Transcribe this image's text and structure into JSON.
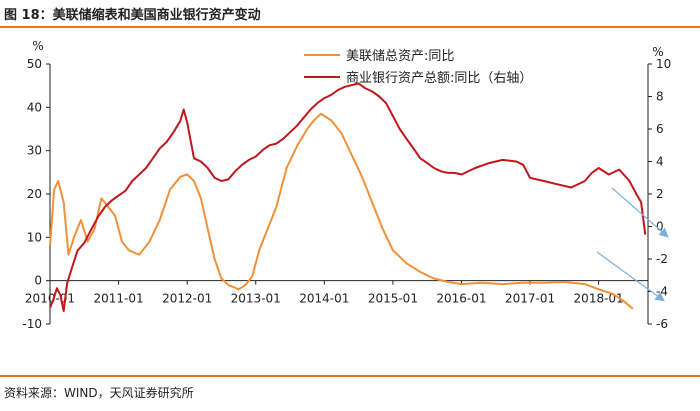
{
  "header": {
    "title": "图 18：美联储缩表和美国商业银行资产变动"
  },
  "footer": {
    "source": "资料来源：WIND，天风证券研究所"
  },
  "colors": {
    "accent": "#e8741e",
    "fed": "#f0913a",
    "banks": "#c0161c",
    "arrow": "#7fb0d8"
  },
  "chart_data": {
    "type": "line",
    "x_tick_labels": [
      "2010-01",
      "2011-01",
      "2012-01",
      "2013-01",
      "2014-01",
      "2015-01",
      "2016-01",
      "2017-01",
      "2018-01"
    ],
    "y_left": {
      "unit": "%",
      "ticks": [
        "50",
        "40",
        "30",
        "20",
        "10",
        "0",
        "-10"
      ],
      "range": [
        -10,
        50
      ]
    },
    "y_right": {
      "unit": "%",
      "ticks": [
        "10",
        "8",
        "6",
        "4",
        "2",
        "0",
        "-2",
        "-4",
        "-6"
      ],
      "range": [
        -6,
        10
      ]
    },
    "grid": false,
    "legend_position": "top-center",
    "series": [
      {
        "name": "美联储总资产:同比",
        "axis": "left",
        "color": "#f0913a",
        "points": [
          [
            2010.0,
            8
          ],
          [
            2010.06,
            21
          ],
          [
            2010.12,
            23
          ],
          [
            2010.2,
            18
          ],
          [
            2010.27,
            6
          ],
          [
            2010.35,
            10
          ],
          [
            2010.45,
            14
          ],
          [
            2010.55,
            9
          ],
          [
            2010.65,
            12
          ],
          [
            2010.75,
            19
          ],
          [
            2010.85,
            17
          ],
          [
            2010.95,
            15
          ],
          [
            2011.05,
            9
          ],
          [
            2011.15,
            7
          ],
          [
            2011.3,
            6
          ],
          [
            2011.45,
            9
          ],
          [
            2011.6,
            14
          ],
          [
            2011.75,
            21
          ],
          [
            2011.9,
            24
          ],
          [
            2012.0,
            24.5
          ],
          [
            2012.1,
            23
          ],
          [
            2012.2,
            19
          ],
          [
            2012.3,
            12
          ],
          [
            2012.4,
            5
          ],
          [
            2012.5,
            0.5
          ],
          [
            2012.6,
            -1
          ],
          [
            2012.75,
            -2
          ],
          [
            2012.85,
            -1
          ],
          [
            2012.95,
            1
          ],
          [
            2013.05,
            7
          ],
          [
            2013.15,
            11
          ],
          [
            2013.3,
            17
          ],
          [
            2013.45,
            26
          ],
          [
            2013.6,
            31
          ],
          [
            2013.75,
            35
          ],
          [
            2013.85,
            37
          ],
          [
            2013.95,
            38.5
          ],
          [
            2014.0,
            38
          ],
          [
            2014.1,
            37
          ],
          [
            2014.25,
            34
          ],
          [
            2014.4,
            29
          ],
          [
            2014.55,
            24
          ],
          [
            2014.7,
            18
          ],
          [
            2014.85,
            12
          ],
          [
            2015.0,
            7
          ],
          [
            2015.2,
            4
          ],
          [
            2015.4,
            2
          ],
          [
            2015.6,
            0.5
          ],
          [
            2015.8,
            -0.3
          ],
          [
            2016.0,
            -0.8
          ],
          [
            2016.3,
            -0.5
          ],
          [
            2016.6,
            -0.8
          ],
          [
            2016.9,
            -0.5
          ],
          [
            2017.2,
            -0.5
          ],
          [
            2017.5,
            -0.3
          ],
          [
            2017.8,
            -0.8
          ],
          [
            2018.0,
            -2
          ],
          [
            2018.2,
            -3
          ],
          [
            2018.35,
            -4.5
          ],
          [
            2018.5,
            -6.5
          ]
        ]
      },
      {
        "name": "商业银行资产总额:同比（右轴）",
        "axis": "right",
        "color": "#c0161c",
        "points": [
          [
            2010.0,
            -5
          ],
          [
            2010.05,
            -4.5
          ],
          [
            2010.1,
            -3.8
          ],
          [
            2010.15,
            -4.2
          ],
          [
            2010.2,
            -5.2
          ],
          [
            2010.25,
            -3.5
          ],
          [
            2010.3,
            -2.8
          ],
          [
            2010.4,
            -1.5
          ],
          [
            2010.5,
            -1
          ],
          [
            2010.6,
            -0.2
          ],
          [
            2010.7,
            0.6
          ],
          [
            2010.8,
            1.2
          ],
          [
            2010.9,
            1.6
          ],
          [
            2011.0,
            1.9
          ],
          [
            2011.1,
            2.2
          ],
          [
            2011.2,
            2.8
          ],
          [
            2011.3,
            3.2
          ],
          [
            2011.4,
            3.6
          ],
          [
            2011.5,
            4.2
          ],
          [
            2011.6,
            4.8
          ],
          [
            2011.7,
            5.2
          ],
          [
            2011.8,
            5.8
          ],
          [
            2011.9,
            6.5
          ],
          [
            2011.95,
            7.2
          ],
          [
            2012.0,
            6.4
          ],
          [
            2012.1,
            4.2
          ],
          [
            2012.2,
            4
          ],
          [
            2012.3,
            3.6
          ],
          [
            2012.4,
            3
          ],
          [
            2012.5,
            2.8
          ],
          [
            2012.6,
            2.9
          ],
          [
            2012.7,
            3.4
          ],
          [
            2012.8,
            3.8
          ],
          [
            2012.9,
            4.1
          ],
          [
            2013.0,
            4.3
          ],
          [
            2013.1,
            4.7
          ],
          [
            2013.2,
            5
          ],
          [
            2013.3,
            5.1
          ],
          [
            2013.4,
            5.4
          ],
          [
            2013.5,
            5.8
          ],
          [
            2013.6,
            6.2
          ],
          [
            2013.7,
            6.7
          ],
          [
            2013.8,
            7.2
          ],
          [
            2013.9,
            7.6
          ],
          [
            2014.0,
            7.9
          ],
          [
            2014.1,
            8.1
          ],
          [
            2014.2,
            8.4
          ],
          [
            2014.3,
            8.6
          ],
          [
            2014.4,
            8.7
          ],
          [
            2014.5,
            8.8
          ],
          [
            2014.6,
            8.5
          ],
          [
            2014.7,
            8.3
          ],
          [
            2014.8,
            8
          ],
          [
            2014.9,
            7.6
          ],
          [
            2015.0,
            6.8
          ],
          [
            2015.1,
            6
          ],
          [
            2015.2,
            5.4
          ],
          [
            2015.3,
            4.8
          ],
          [
            2015.4,
            4.2
          ],
          [
            2015.5,
            3.9
          ],
          [
            2015.6,
            3.6
          ],
          [
            2015.7,
            3.4
          ],
          [
            2015.8,
            3.3
          ],
          [
            2015.9,
            3.3
          ],
          [
            2016.0,
            3.2
          ],
          [
            2016.2,
            3.6
          ],
          [
            2016.4,
            3.9
          ],
          [
            2016.6,
            4.1
          ],
          [
            2016.8,
            4
          ],
          [
            2016.9,
            3.8
          ],
          [
            2017.0,
            3
          ],
          [
            2017.2,
            2.8
          ],
          [
            2017.4,
            2.6
          ],
          [
            2017.6,
            2.4
          ],
          [
            2017.8,
            2.8
          ],
          [
            2017.9,
            3.3
          ],
          [
            2018.0,
            3.6
          ],
          [
            2018.15,
            3.2
          ],
          [
            2018.3,
            3.5
          ],
          [
            2018.45,
            2.8
          ],
          [
            2018.55,
            2
          ],
          [
            2018.62,
            1.5
          ],
          [
            2018.68,
            -0.5
          ]
        ]
      }
    ]
  }
}
